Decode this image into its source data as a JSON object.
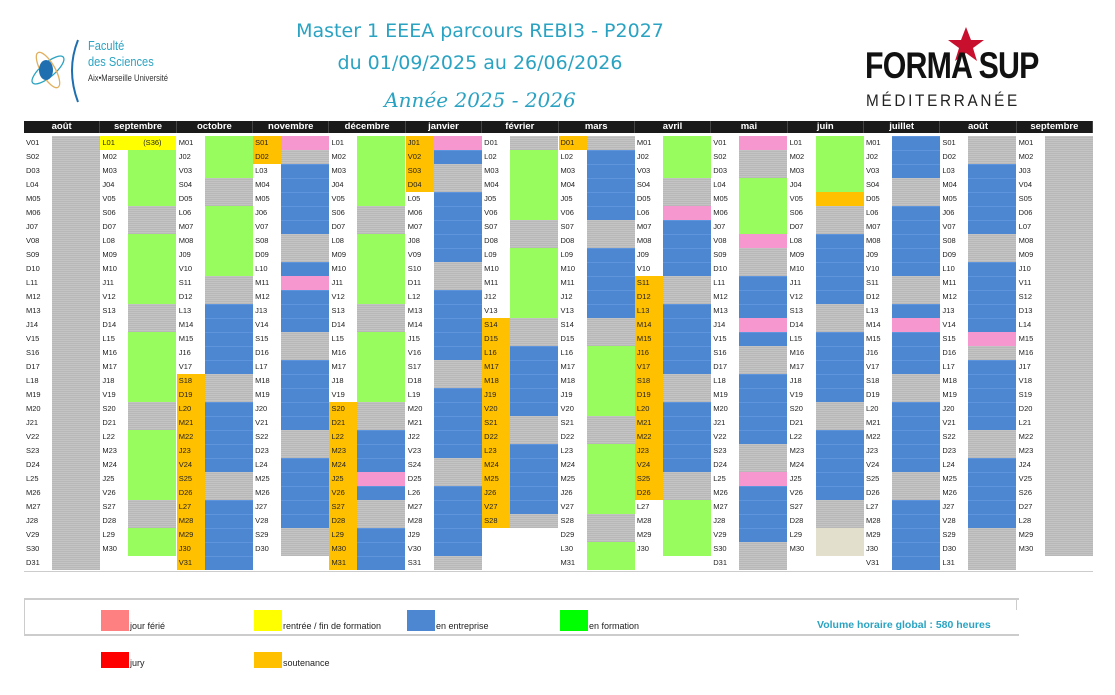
{
  "header": {
    "title_line1": "Master 1 EEEA parcours REBI3 - P2027",
    "title_line2": "du 01/09/2025 au 26/06/2026",
    "title_line3": "Année 2025 - 2026"
  },
  "logos": {
    "faculty": {
      "line1": "Faculté",
      "line2": "des Sciences",
      "line3": "Aix•Marseille Université"
    },
    "formasup": {
      "line1": "FORMA SUP",
      "line2": "MÉDITERRANÉE"
    }
  },
  "colors": {
    "g": "#c0c0c0",
    "G": "#98fb5e",
    "B": "#4d87d2",
    "P": "#f797d0",
    "Y": "#ffff00",
    "O": "#ffc000",
    "T": "#e2dfcc"
  },
  "months": [
    {
      "name": "août",
      "labels": "V01 S02 D03 L04 M05 M06 J07 V08 S09 D10 L11 M12 M13 J14 V15 S16 D17 L18 M19 M20 J21 V22 S23 D24 L25 M26 M27 J28 V29 S30 D31",
      "cells": "ggggggggggggggggggggggggggggggg",
      "label_highlight": []
    },
    {
      "name": "septembre",
      "labels": "L01 M02 M03 J04 V05 S06 D07 L08 M09 M10 J11 V12 S13 D14 L15 M16 M17 J18 V19 S20 D21 L22 M23 M24 J25 V26 S27 D28 L29 M30",
      "cells": "YGGGGggGGGGGggGGGGGggGGGGGggGG-",
      "label_highlight": [
        {
          "from": 1,
          "to": 1,
          "color": "Y"
        }
      ],
      "cell_text": {
        "1": "(S36)"
      }
    },
    {
      "name": "octobre",
      "labels": "M01 J02 V03 S04 D05 L06 M07 M08 J09 V10 S11 D12 L13 M14 M15 J16 V17 S18 D19 L20 M21 M22 J23 V24 S25 D26 L27 M28 M29 J30 V31",
      "cells": "GGGggGGGGGggBBBBBggBBBBBggBBBBB",
      "label_highlight": [
        {
          "from": 18,
          "to": 31,
          "color": "O"
        }
      ]
    },
    {
      "name": "novembre",
      "labels": "S01 D02 L03 M04 M05 J06 V07 S08 D09 L10 M11 M12 J13 V14 S15 D16 L17 M18 M19 J20 V21 S22 D23 L24 M25 M26 J27 V28 S29 D30",
      "cells": "PgBBBBBggBPBBBggBBBBBggBBBBBgg-",
      "label_highlight": [
        {
          "from": 1,
          "to": 2,
          "color": "O"
        }
      ]
    },
    {
      "name": "décembre",
      "labels": "L01 M02 M03 J04 V05 S06 D07 L08 M09 M10 J11 V12 S13 D14 L15 M16 M17 J18 V19 S20 D21 L22 M23 M24 J25 V26 S27 D28 L29 M30 M31",
      "cells": "GGGGGggGGGGGggGGGGGggBBBPBggBBB",
      "label_highlight": [
        {
          "from": 20,
          "to": 31,
          "color": "O"
        }
      ]
    },
    {
      "name": "janvier",
      "labels": "J01 V02 S03 D04 L05 M06 M07 J08 V09 S10 D11 L12 M13 M14 J15 V16 S17 D18 L19 M20 M21 J22 V23 S24 D25 L26 M27 M28 J29 V30 S31",
      "cells": "PBggBBBBBggBBBBBggBBBBBggBBBBBg",
      "label_highlight": [
        {
          "from": 1,
          "to": 4,
          "color": "O"
        }
      ]
    },
    {
      "name": "février",
      "labels": "D01 L02 M03 M04 J05 V06 S07 D08 L09 M10 M11 J12 V13 S14 D15 L16 M17 M18 J19 V20 S21 D22 L23 M24 M25 J26 V27 S28",
      "cells": "gGGGGGggGGGGGggBBBBBggBBBBBg---",
      "label_highlight": [
        {
          "from": 14,
          "to": 28,
          "color": "O"
        }
      ]
    },
    {
      "name": "mars",
      "labels": "D01 L02 M03 M04 J05 V06 S07 D08 L09 M10 M11 J12 V13 S14 D15 L16 M17 M18 J19 V20 S21 D22 L23 M24 M25 J26 V27 S28 D29 L30 M31",
      "cells": "gBBBBBggBBBBBggGGGGGggGGGGGggGG",
      "label_highlight": [
        {
          "from": 1,
          "to": 1,
          "color": "O"
        }
      ]
    },
    {
      "name": "avril",
      "labels": "M01 J02 V03 S04 D05 L06 M07 M08 J09 V10 S11 D12 L13 M14 M15 J16 V17 S18 D19 L20 M21 M22 J23 V24 S25 D26 L27 M28 M29 J30",
      "cells": "GGGggPBBBBggBBBBBggBBBBBggGGGG-",
      "label_highlight": [
        {
          "from": 11,
          "to": 26,
          "color": "O"
        }
      ]
    },
    {
      "name": "mai",
      "labels": "V01 S02 D03 L04 M05 M06 J07 V08 S09 D10 L11 M12 M13 J14 V15 S16 D17 L18 M19 M20 J21 V22 S23 D24 L25 M26 M27 J28 V29 S30 D31",
      "cells": "PggGGGGPggBBBPBggBBBBBggPBBBBgg",
      "label_highlight": []
    },
    {
      "name": "juin",
      "labels": "L01 M02 M03 J04 V05 S06 D07 L08 M09 M10 J11 V12 S13 D14 L15 M16 M17 J18 V19 S20 D21 L22 M23 M24 J25 V26 S27 D28 L29 M30",
      "cells": "GGGGOggBBBBBggBBBBBggBBBBBggTT-",
      "label_highlight": []
    },
    {
      "name": "juillet",
      "labels": "M01 J02 V03 S04 D05 L06 M07 M08 J09 V10 S11 D12 L13 M14 M15 J16 V17 S18 D19 L20 M21 M22 J23 V24 S25 D26 L27 M28 M29 J30 V31",
      "cells": "BBBggBBBBBggBPBBBggBBBBBggBBBBB",
      "label_highlight": []
    },
    {
      "name": "août",
      "labels": "S01 D02 L03 M04 M05 J06 V07 S08 D09 L10 M11 M12 J13 V14 S15 D16 L17 M18 M19 J20 V21 S22 D23 L24 M25 M26 J27 V28 S29 D30 L31",
      "cells": "ggBBBBBggBBBBBPgBBBBBggBBBBBggg",
      "label_highlight": []
    },
    {
      "name": "septembre",
      "labels": "M01 M02 J03 V04 S05 D06 L07 M08 M09 J10 V11 S12 D13 L14 M15 M16 J17 V18 S19 D20 L21 M22 M23 J24 V25 S26 D27 L28 M29 M30",
      "cells": "gggggggggggggggggggggggggggggg-",
      "label_highlight": []
    }
  ],
  "legend": {
    "items": [
      {
        "label": "jour férié",
        "color": "#ff8080"
      },
      {
        "label": "rentrée / fin de formation",
        "color": "#ffff00"
      },
      {
        "label": "en entreprise",
        "color": "#4d87d2"
      },
      {
        "label": "en formation",
        "color": "#00ff00"
      },
      {
        "label": "jury",
        "color": "#ff0000"
      },
      {
        "label": "soutenance",
        "color": "#ffc000"
      }
    ],
    "volume": "Volume horaire global : 580 heures"
  }
}
